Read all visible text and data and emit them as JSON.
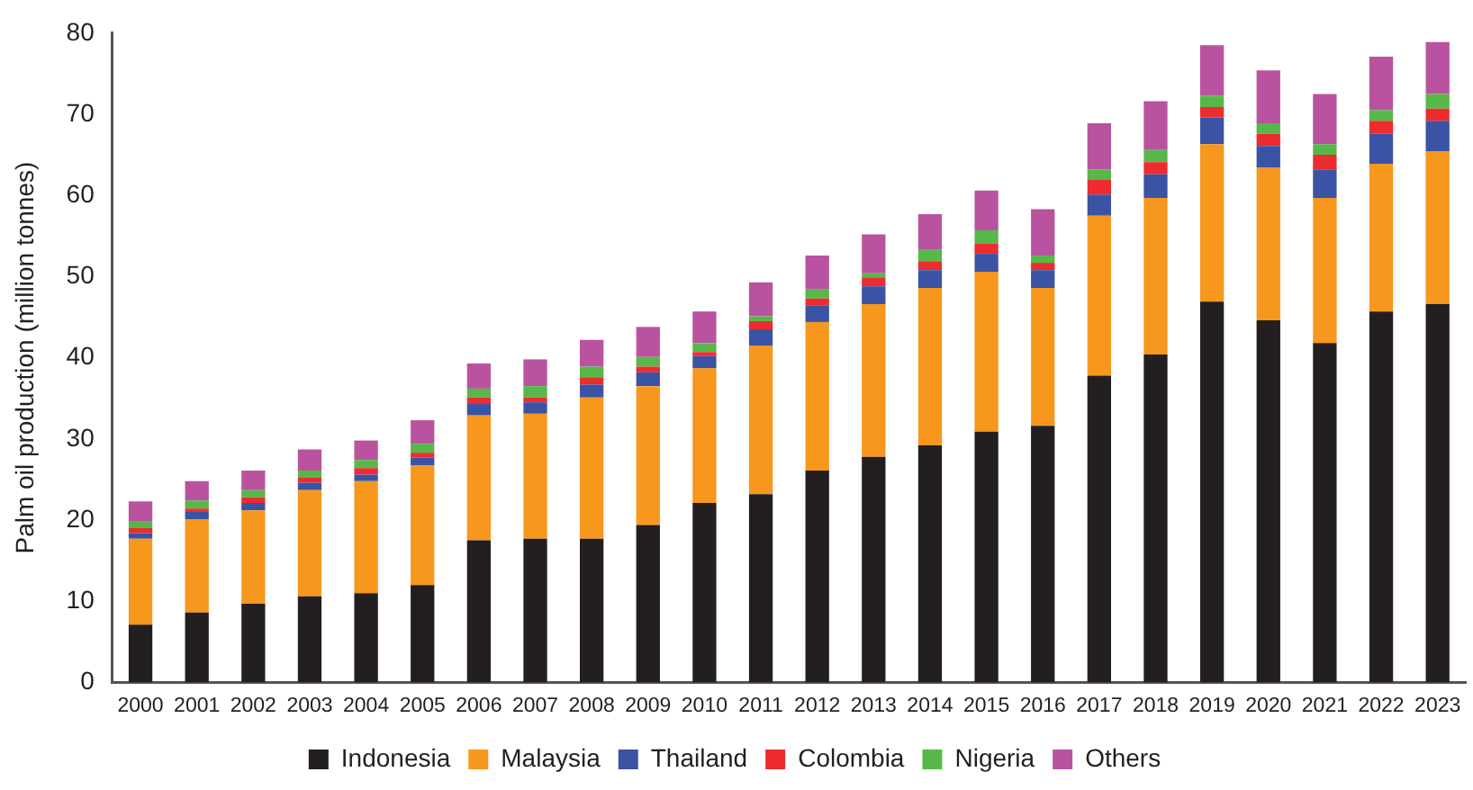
{
  "chart_data": {
    "type": "bar",
    "stacked": true,
    "ylabel": "Palm oil production (million tonnes)",
    "categories": [
      "2000",
      "2001",
      "2002",
      "2003",
      "2004",
      "2005",
      "2006",
      "2007",
      "2008",
      "2009",
      "2010",
      "2011",
      "2012",
      "2013",
      "2014",
      "2015",
      "2016",
      "2017",
      "2018",
      "2019",
      "2020",
      "2021",
      "2022",
      "2023"
    ],
    "series": [
      {
        "name": "Indonesia",
        "color": "#231f20",
        "values": [
          7.1,
          8.6,
          9.7,
          10.6,
          11.0,
          12.0,
          17.5,
          17.7,
          17.7,
          19.4,
          22.1,
          23.2,
          26.1,
          27.8,
          29.2,
          30.9,
          31.6,
          37.8,
          40.4,
          46.9,
          44.6,
          41.8,
          45.7,
          46.6
        ]
      },
      {
        "name": "Malaysia",
        "color": "#f7971d",
        "values": [
          10.6,
          11.5,
          11.5,
          13.1,
          13.8,
          14.7,
          15.4,
          15.4,
          17.4,
          17.1,
          16.6,
          18.3,
          18.3,
          18.8,
          19.4,
          19.7,
          17.0,
          19.7,
          19.3,
          19.4,
          18.8,
          17.9,
          18.2,
          18.8
        ]
      },
      {
        "name": "Thailand",
        "color": "#3a53a4",
        "values": [
          0.7,
          0.9,
          0.9,
          0.9,
          0.8,
          1.0,
          1.4,
          1.4,
          1.6,
          1.7,
          1.5,
          2.0,
          2.0,
          2.2,
          2.2,
          2.2,
          2.2,
          2.6,
          2.9,
          3.3,
          2.7,
          3.5,
          3.7,
          3.8
        ]
      },
      {
        "name": "Colombia",
        "color": "#ee2b2f",
        "values": [
          0.6,
          0.4,
          0.7,
          0.6,
          0.8,
          0.6,
          0.8,
          0.6,
          0.9,
          0.7,
          0.5,
          1.0,
          0.9,
          1.1,
          1.1,
          1.3,
          0.9,
          1.8,
          1.5,
          1.3,
          1.5,
          1.8,
          1.6,
          1.5
        ]
      },
      {
        "name": "Nigeria",
        "color": "#56b848",
        "values": [
          0.9,
          1.0,
          0.9,
          0.9,
          1.0,
          1.1,
          1.1,
          1.4,
          1.3,
          1.2,
          1.1,
          0.6,
          1.1,
          0.5,
          1.4,
          1.6,
          0.9,
          1.3,
          1.5,
          1.4,
          1.3,
          1.3,
          1.3,
          1.8
        ]
      },
      {
        "name": "Others",
        "color": "#b953a0",
        "values": [
          2.4,
          2.4,
          2.4,
          2.6,
          2.4,
          2.9,
          3.1,
          3.3,
          3.3,
          3.7,
          3.9,
          4.2,
          4.2,
          4.8,
          4.4,
          4.9,
          5.7,
          5.7,
          6.0,
          6.2,
          6.5,
          6.2,
          6.6,
          6.4
        ]
      }
    ],
    "ylim": [
      0,
      80
    ],
    "yticks": [
      0,
      10,
      20,
      30,
      40,
      50,
      60,
      70,
      80
    ],
    "grid": false,
    "legend": "bottom"
  }
}
